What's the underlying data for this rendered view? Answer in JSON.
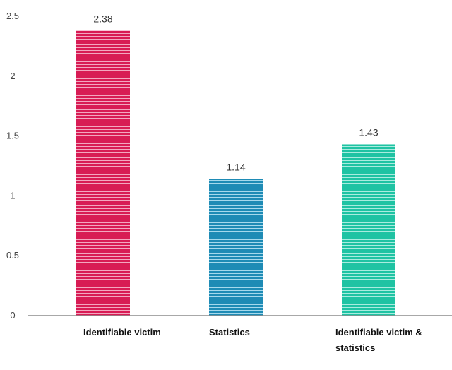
{
  "chart_data": {
    "type": "bar",
    "categories": [
      [
        "Identifiable victim"
      ],
      [
        "Statistics"
      ],
      [
        "Identifiable victim &",
        "statistics"
      ]
    ],
    "values": [
      2.38,
      1.14,
      1.43
    ],
    "data_labels": [
      "2.38",
      "1.14",
      "1.43"
    ],
    "colors": [
      "#d81b54",
      "#1e8bb5",
      "#1fc3a3"
    ],
    "title": "",
    "xlabel": "",
    "ylabel": "",
    "ylim": [
      0,
      2.5
    ],
    "yticks": [
      0,
      0.5,
      1,
      1.5,
      2,
      2.5
    ],
    "ytick_labels": [
      "0",
      "0.5",
      "1",
      "1.5",
      "2",
      "2.5"
    ],
    "grid": false,
    "legend": "none",
    "bar_style": "horizontal-stripes"
  }
}
